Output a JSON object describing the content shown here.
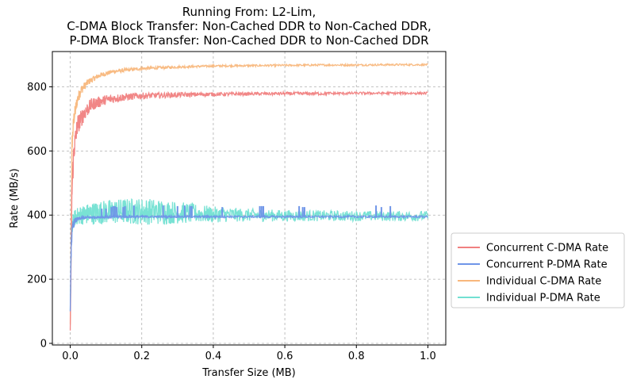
{
  "chart_data": {
    "type": "line",
    "title": [
      "Running From: L2-Lim,",
      "C-DMA Block Transfer: Non-Cached DDR to Non-Cached DDR,",
      "P-DMA Block Transfer: Non-Cached DDR to Non-Cached DDR"
    ],
    "xlabel": "Transfer Size (MB)",
    "ylabel": "Rate (MB/s)",
    "xlim": [
      -0.05,
      1.05
    ],
    "ylim": [
      -5,
      910
    ],
    "xticks": [
      0.0,
      0.2,
      0.4,
      0.6,
      0.8,
      1.0
    ],
    "xtick_labels": [
      "0.0",
      "0.2",
      "0.4",
      "0.6",
      "0.8",
      "1.0"
    ],
    "yticks": [
      0,
      200,
      400,
      600,
      800
    ],
    "ytick_labels": [
      "0",
      "200",
      "400",
      "600",
      "800"
    ],
    "grid": true,
    "legend_position": "outside-right",
    "series": [
      {
        "name": "Concurrent C-DMA Rate",
        "color": "#f08080",
        "x": [
          0.0,
          0.005,
          0.01,
          0.02,
          0.04,
          0.06,
          0.1,
          0.15,
          0.2,
          0.3,
          0.4,
          0.5,
          0.6,
          0.7,
          0.8,
          0.9,
          1.0
        ],
        "y": [
          40,
          480,
          600,
          680,
          720,
          745,
          760,
          768,
          772,
          775,
          777,
          778,
          779,
          779,
          780,
          780,
          780
        ],
        "noise": [
          0,
          40,
          40,
          30,
          25,
          20,
          15,
          12,
          10,
          8,
          6,
          5,
          5,
          5,
          4,
          4,
          4
        ]
      },
      {
        "name": "Concurrent P-DMA Rate",
        "color": "#6f95e8",
        "x": [
          0.0,
          0.003,
          0.008,
          0.015,
          0.03,
          0.05,
          0.1,
          0.2,
          0.4,
          0.6,
          0.8,
          1.0
        ],
        "y": [
          100,
          320,
          370,
          385,
          390,
          393,
          394,
          395,
          395,
          395,
          395,
          395
        ],
        "noise": [
          0,
          30,
          15,
          8,
          5,
          4,
          3,
          3,
          3,
          3,
          3,
          3
        ],
        "spikes": [
          0.088,
          0.1,
          0.115,
          0.12,
          0.125,
          0.13,
          0.148,
          0.153,
          0.178,
          0.26,
          0.3,
          0.32,
          0.335,
          0.34,
          0.425,
          0.53,
          0.535,
          0.54,
          0.64,
          0.65,
          0.655,
          0.855,
          0.87,
          0.895
        ],
        "spike_heights": [
          420,
          420,
          425,
          428,
          428,
          425,
          425,
          428,
          430,
          430,
          428,
          430,
          428,
          428,
          425,
          428,
          428,
          428,
          428,
          425,
          425,
          430,
          425,
          428
        ]
      },
      {
        "name": "Individual C-DMA Rate",
        "color": "#f8b77c",
        "x": [
          0.0,
          0.005,
          0.01,
          0.02,
          0.03,
          0.05,
          0.08,
          0.12,
          0.2,
          0.3,
          0.4,
          0.5,
          0.6,
          0.7,
          0.8,
          0.9,
          1.0
        ],
        "y": [
          60,
          620,
          700,
          760,
          790,
          815,
          835,
          848,
          857,
          862,
          865,
          866,
          867,
          868,
          868,
          869,
          869
        ],
        "noise": [
          0,
          30,
          25,
          20,
          15,
          10,
          8,
          6,
          5,
          4,
          3,
          3,
          3,
          3,
          3,
          3,
          3
        ]
      },
      {
        "name": "Individual P-DMA Rate",
        "color": "#72e0d2",
        "x": [
          0.0,
          0.003,
          0.008,
          0.015,
          0.03,
          0.06,
          0.1,
          0.15,
          0.2,
          0.25,
          0.3,
          0.35,
          0.4,
          0.5,
          0.6,
          0.7,
          0.8,
          0.9,
          1.0
        ],
        "y": [
          100,
          330,
          380,
          395,
          400,
          405,
          410,
          412,
          412,
          410,
          408,
          405,
          402,
          400,
          398,
          398,
          397,
          397,
          397
        ],
        "noise": [
          0,
          40,
          25,
          25,
          30,
          35,
          38,
          40,
          42,
          40,
          35,
          30,
          25,
          20,
          18,
          17,
          16,
          16,
          16
        ]
      }
    ]
  }
}
